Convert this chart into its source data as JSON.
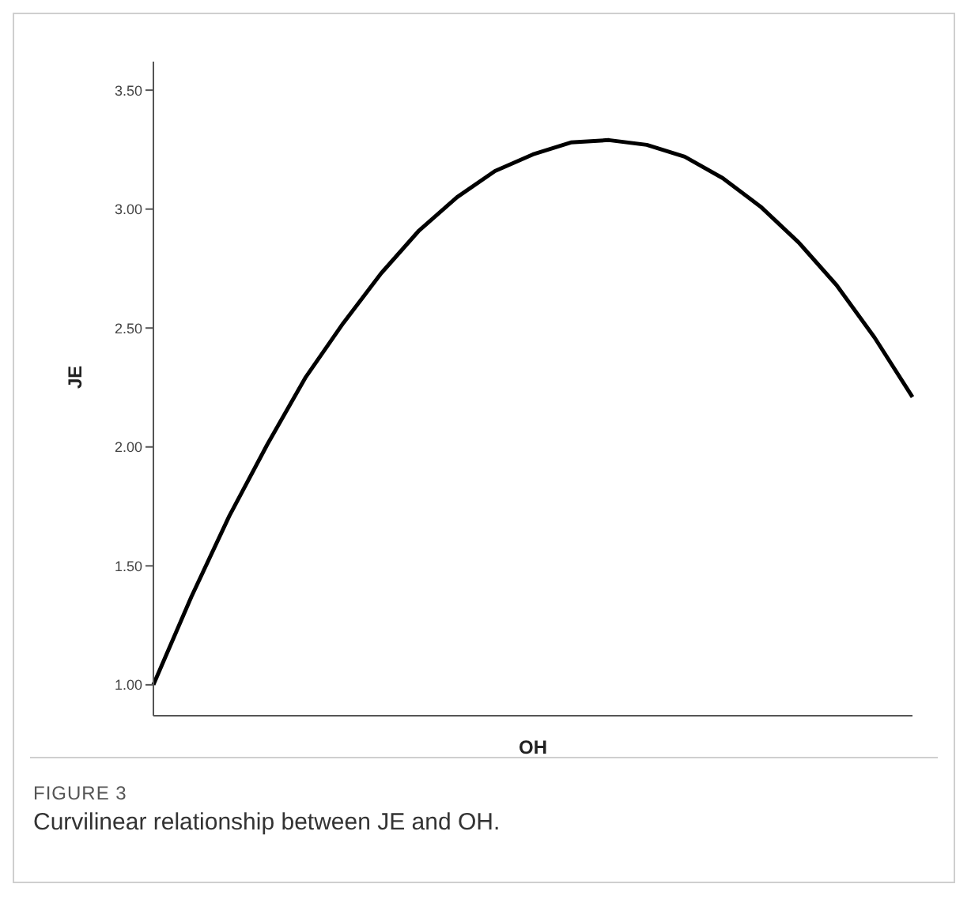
{
  "chart_data": {
    "type": "line",
    "xlabel": "OH",
    "ylabel": "JE",
    "categories": [
      null,
      null,
      null,
      null,
      null,
      null,
      null,
      null,
      null,
      null,
      null,
      null,
      null,
      null,
      null,
      null,
      null,
      null,
      null,
      null,
      null
    ],
    "series": [
      {
        "color": "#000000",
        "values": [
          1.0,
          1.37,
          1.71,
          2.01,
          2.29,
          2.52,
          2.73,
          2.91,
          3.05,
          3.16,
          3.23,
          3.28,
          3.29,
          3.27,
          3.22,
          3.13,
          3.01,
          2.86,
          2.68,
          2.46,
          2.21
        ]
      }
    ],
    "ylim": [
      0.87,
      3.62
    ],
    "yticks": [
      {
        "value": 1,
        "label": "1.00"
      },
      {
        "value": 1.5,
        "label": "1.50"
      },
      {
        "value": 2,
        "label": "2.00"
      },
      {
        "value": 2.5,
        "label": "2.50"
      },
      {
        "value": 3,
        "label": "3.00"
      },
      {
        "value": 3.5,
        "label": "3.50"
      }
    ],
    "grid": false,
    "marker": "none",
    "line_style": "solid",
    "legend": false,
    "annotations": [
      "FIGURE 3",
      "Curvilinear relationship between JE and OH."
    ]
  }
}
